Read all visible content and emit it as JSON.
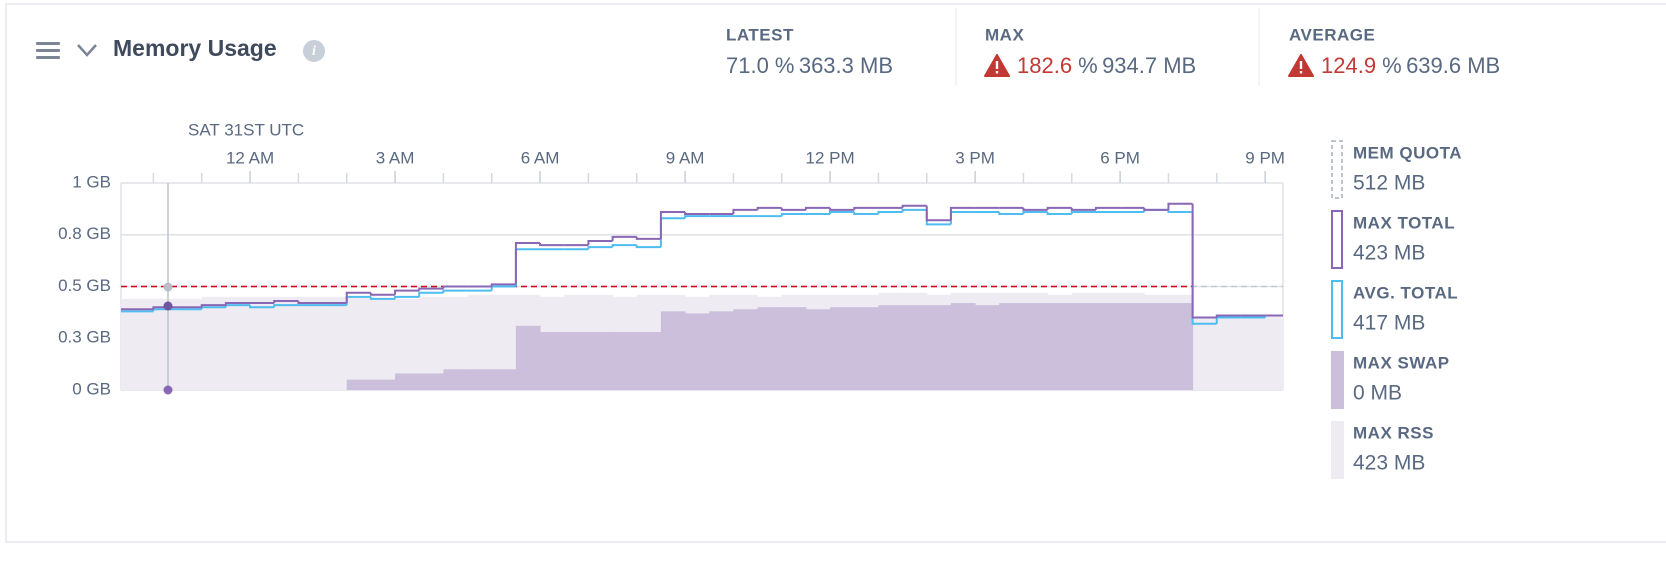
{
  "header": {
    "title": "Memory Usage"
  },
  "stats": [
    {
      "label": "LATEST",
      "percent": "71.0",
      "percent_unit": "%",
      "size": "363.3 MB",
      "warning": false
    },
    {
      "label": "MAX",
      "percent": "182.6",
      "percent_unit": "%",
      "size": "934.7 MB",
      "warning": true
    },
    {
      "label": "AVERAGE",
      "percent": "124.9",
      "percent_unit": "%",
      "size": "639.6 MB",
      "warning": true
    }
  ],
  "chart_data": {
    "type": "step",
    "date_label": "SAT 31ST UTC",
    "x": [
      -2.5,
      -2,
      -1.5,
      -1,
      -0.5,
      0,
      0.5,
      1,
      1.5,
      2,
      2.5,
      3,
      3.5,
      4,
      4.5,
      5,
      5.5,
      6,
      6.5,
      7,
      7.5,
      8,
      8.5,
      9,
      9.5,
      10,
      10.5,
      11,
      11.5,
      12,
      12.5,
      13,
      13.5,
      14,
      14.5,
      15,
      15.5,
      16,
      16.5,
      17,
      17.5,
      18,
      18.5,
      19,
      19.5,
      20,
      20.5,
      21
    ],
    "xlim": [
      -2.67,
      21.37
    ],
    "xticks": [
      {
        "value": 0,
        "label": "12 AM"
      },
      {
        "value": 3,
        "label": "3 AM"
      },
      {
        "value": 6,
        "label": "6 AM"
      },
      {
        "value": 9,
        "label": "9 AM"
      },
      {
        "value": 12,
        "label": "12 PM"
      },
      {
        "value": 15,
        "label": "3 PM"
      },
      {
        "value": 18,
        "label": "6 PM"
      },
      {
        "value": 21,
        "label": "9 PM"
      }
    ],
    "xminorticks": [
      -2,
      -1,
      1,
      2,
      4,
      5,
      7,
      8,
      10,
      11,
      13,
      14,
      16,
      17,
      19,
      20
    ],
    "ylim": [
      0,
      1
    ],
    "yticks": [
      {
        "value": 0,
        "label": "0 GB"
      },
      {
        "value": 0.25,
        "label": "0.3 GB"
      },
      {
        "value": 0.5,
        "label": "0.5 GB"
      },
      {
        "value": 0.75,
        "label": "0.8 GB"
      },
      {
        "value": 1,
        "label": "1 GB"
      }
    ],
    "grid": true,
    "quota": {
      "name": "MEM QUOTA",
      "legend_value": "512 MB",
      "value": 0.5,
      "color": "#d0021b"
    },
    "series": [
      {
        "name": "MAX TOTAL",
        "legend_value": "423 MB",
        "style": "line",
        "color": "#8a67b5",
        "values": [
          0.39,
          0.4,
          0.4,
          0.41,
          0.42,
          0.42,
          0.43,
          0.42,
          0.42,
          0.47,
          0.46,
          0.48,
          0.49,
          0.5,
          0.5,
          0.51,
          0.71,
          0.7,
          0.7,
          0.72,
          0.74,
          0.73,
          0.86,
          0.85,
          0.85,
          0.87,
          0.88,
          0.87,
          0.88,
          0.87,
          0.88,
          0.88,
          0.89,
          0.82,
          0.88,
          0.88,
          0.88,
          0.87,
          0.88,
          0.87,
          0.88,
          0.88,
          0.87,
          0.9,
          0.35,
          0.36,
          0.36,
          0.36
        ]
      },
      {
        "name": "AVG. TOTAL",
        "legend_value": "417 MB",
        "style": "line",
        "color": "#4fbdf0",
        "values": [
          0.38,
          0.39,
          0.39,
          0.4,
          0.41,
          0.4,
          0.41,
          0.41,
          0.41,
          0.45,
          0.44,
          0.45,
          0.47,
          0.48,
          0.48,
          0.5,
          0.68,
          0.68,
          0.68,
          0.69,
          0.7,
          0.69,
          0.83,
          0.84,
          0.84,
          0.84,
          0.84,
          0.85,
          0.85,
          0.86,
          0.85,
          0.86,
          0.87,
          0.8,
          0.86,
          0.86,
          0.85,
          0.86,
          0.85,
          0.86,
          0.86,
          0.86,
          0.87,
          0.86,
          0.32,
          0.35,
          0.35,
          0.36
        ]
      },
      {
        "name": "MAX SWAP",
        "legend_value": "0 MB",
        "style": "area",
        "color": "#cbbfdc",
        "values": [
          0,
          0,
          0,
          0,
          0,
          0,
          0,
          0,
          0,
          0.05,
          0.05,
          0.08,
          0.08,
          0.1,
          0.1,
          0.1,
          0.31,
          0.28,
          0.28,
          0.28,
          0.28,
          0.28,
          0.38,
          0.37,
          0.38,
          0.39,
          0.4,
          0.4,
          0.39,
          0.4,
          0.4,
          0.41,
          0.41,
          0.41,
          0.42,
          0.41,
          0.42,
          0.42,
          0.42,
          0.42,
          0.42,
          0.42,
          0.42,
          0.42,
          0,
          0,
          0,
          0
        ]
      },
      {
        "name": "MAX RSS",
        "legend_value": "423 MB",
        "style": "area",
        "color": "#eeebf2",
        "values": [
          0.44,
          0.44,
          0.44,
          0.45,
          0.45,
          0.45,
          0.45,
          0.45,
          0.45,
          0.45,
          0.44,
          0.44,
          0.45,
          0.45,
          0.46,
          0.46,
          0.46,
          0.45,
          0.46,
          0.46,
          0.45,
          0.46,
          0.46,
          0.45,
          0.46,
          0.46,
          0.45,
          0.46,
          0.46,
          0.46,
          0.46,
          0.47,
          0.47,
          0.46,
          0.47,
          0.47,
          0.47,
          0.47,
          0.46,
          0.47,
          0.47,
          0.47,
          0.46,
          0.46,
          0.35,
          0.36,
          0.36,
          0.36
        ]
      }
    ]
  }
}
